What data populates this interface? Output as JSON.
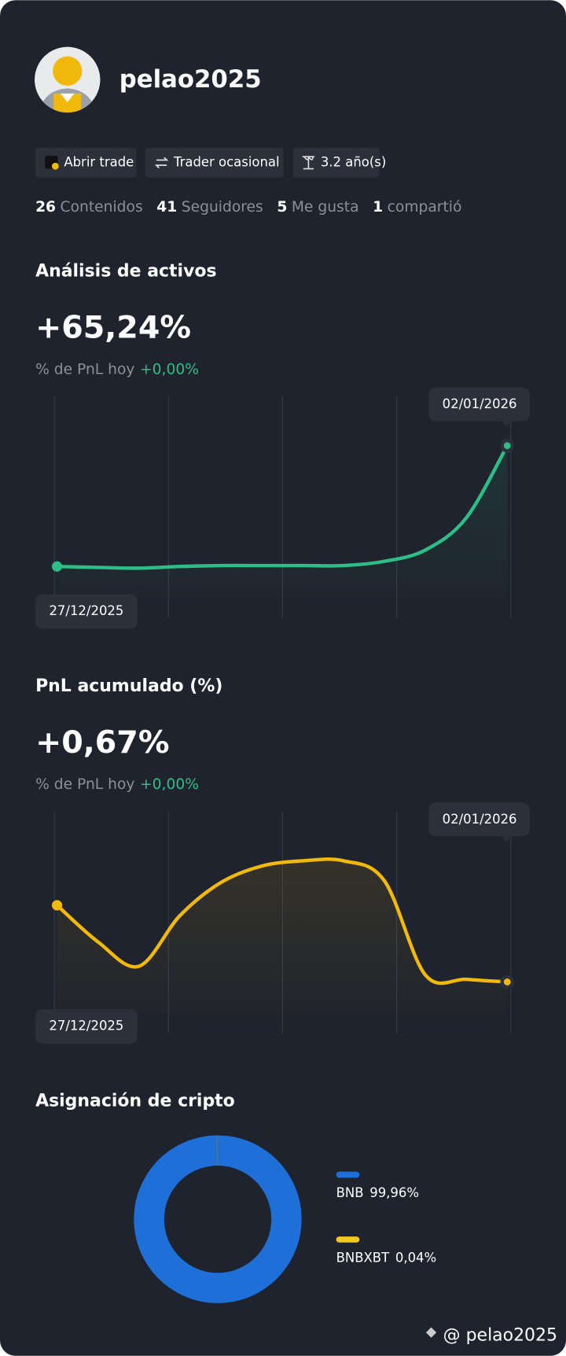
{
  "profile": {
    "name": "pelao2025",
    "badges": [
      "Abrir trade",
      "Trader ocasional",
      "3.2 año(s)"
    ],
    "stats": [
      {
        "count": 26,
        "label": "Contenidos"
      },
      {
        "count": 41,
        "label": "Seguidores"
      },
      {
        "count": 5,
        "label": "Me gusta"
      },
      {
        "count": 1,
        "label": "compartió"
      }
    ]
  },
  "sections": [
    {
      "title": "Análisis de activos",
      "headline": "+65,24%",
      "sub_label": "% de PnL hoy",
      "sub_value": "+0,00%",
      "chart_data": {
        "type": "line",
        "categories": [
          "27/12/2025",
          null,
          null,
          null,
          null,
          null,
          null,
          null,
          null,
          null,
          null,
          "02/01/2026"
        ],
        "series": [
          {
            "color": "#2ebd85",
            "values": [
              0,
              -0.5,
              -0.9,
              0,
              0.5,
              0.5,
              0.5,
              0.5,
              2.8,
              8.9,
              26.3,
              65.24
            ]
          }
        ],
        "ylim": [
          -28,
          92
        ]
      }
    },
    {
      "title": "PnL acumulado (%)",
      "headline": "+0,67%",
      "sub_label": "% de PnL hoy",
      "sub_value": "+0,00%",
      "chart_data": {
        "type": "line",
        "categories": [
          "27/12/2025",
          null,
          null,
          null,
          null,
          null,
          null,
          null,
          null,
          null,
          null,
          "02/01/2026"
        ],
        "series": [
          {
            "color": "#f0b90b",
            "values": [
              1.55,
              1.13,
              0.85,
              1.43,
              1.81,
              2.0,
              2.06,
              2.06,
              1.83,
              0.75,
              0.7,
              0.67
            ]
          }
        ],
        "ylim": [
          0.08,
          2.63
        ]
      }
    },
    {
      "title": "Asignación de cripto",
      "chart_data": {
        "type": "donut",
        "categories": [
          "BNB",
          "BNBXBT"
        ],
        "values": [
          99.96,
          0.04
        ],
        "value_labels": [
          "99,96%",
          "0,04%"
        ],
        "colors": [
          "#1f6fd8",
          "#f0c81e"
        ]
      }
    }
  ],
  "watermark": "@ pelao2025"
}
